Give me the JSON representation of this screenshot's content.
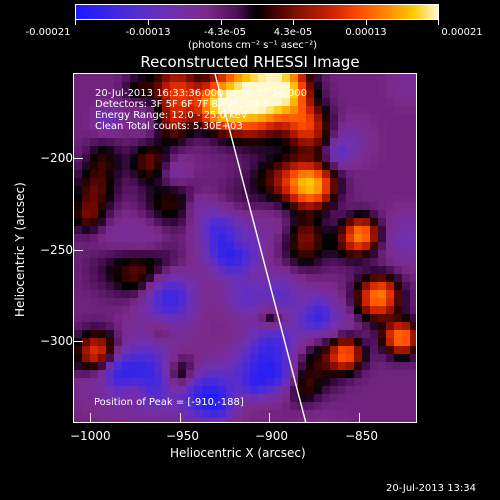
{
  "colorbar": {
    "tick_labels": [
      "-0.00021",
      "-0.00013",
      "-4.3e-05",
      "4.3e-05",
      "0.00013",
      "0.00021"
    ],
    "units": "(photons cm⁻² s⁻¹ asec⁻²)"
  },
  "chart_data": {
    "type": "heatmap",
    "title": "Reconstructed RHESSI Image",
    "xlabel": "Heliocentric X (arcsec)",
    "ylabel": "Heliocentric Y (arcsec)",
    "xlim": [
      -1015,
      -815
    ],
    "ylim": [
      -348,
      -157
    ],
    "xticks": [
      -1000,
      -950,
      -900,
      -850
    ],
    "yticks": [
      -200,
      -250,
      -300
    ],
    "xtick_labels": [
      "−1000",
      "−950",
      "−900",
      "−850"
    ],
    "ytick_labels": [
      "−200",
      "−250",
      "−300"
    ],
    "colormap": "blue-purple-black-red-yellow-white",
    "zrange": [
      -0.00021,
      0.00021
    ],
    "limb_line": {
      "x": [
        -933,
        -880
      ],
      "y": [
        -157,
        -348
      ]
    },
    "peak": {
      "x": -910,
      "y": -188
    }
  },
  "annotations": [
    "20-Jul-2013 16:33:36.000 to 16:37:56.000",
    "Detectors: 3F 5F 6F 7F 8F 9F, Att 0",
    "Energy Range: 12.0 - 25.0 keV",
    "Clean     Total counts: 5.30E+03"
  ],
  "peak_label": "Position of Peak = [-910,-188]",
  "footer_date": "20-Jul-2013 13:34"
}
